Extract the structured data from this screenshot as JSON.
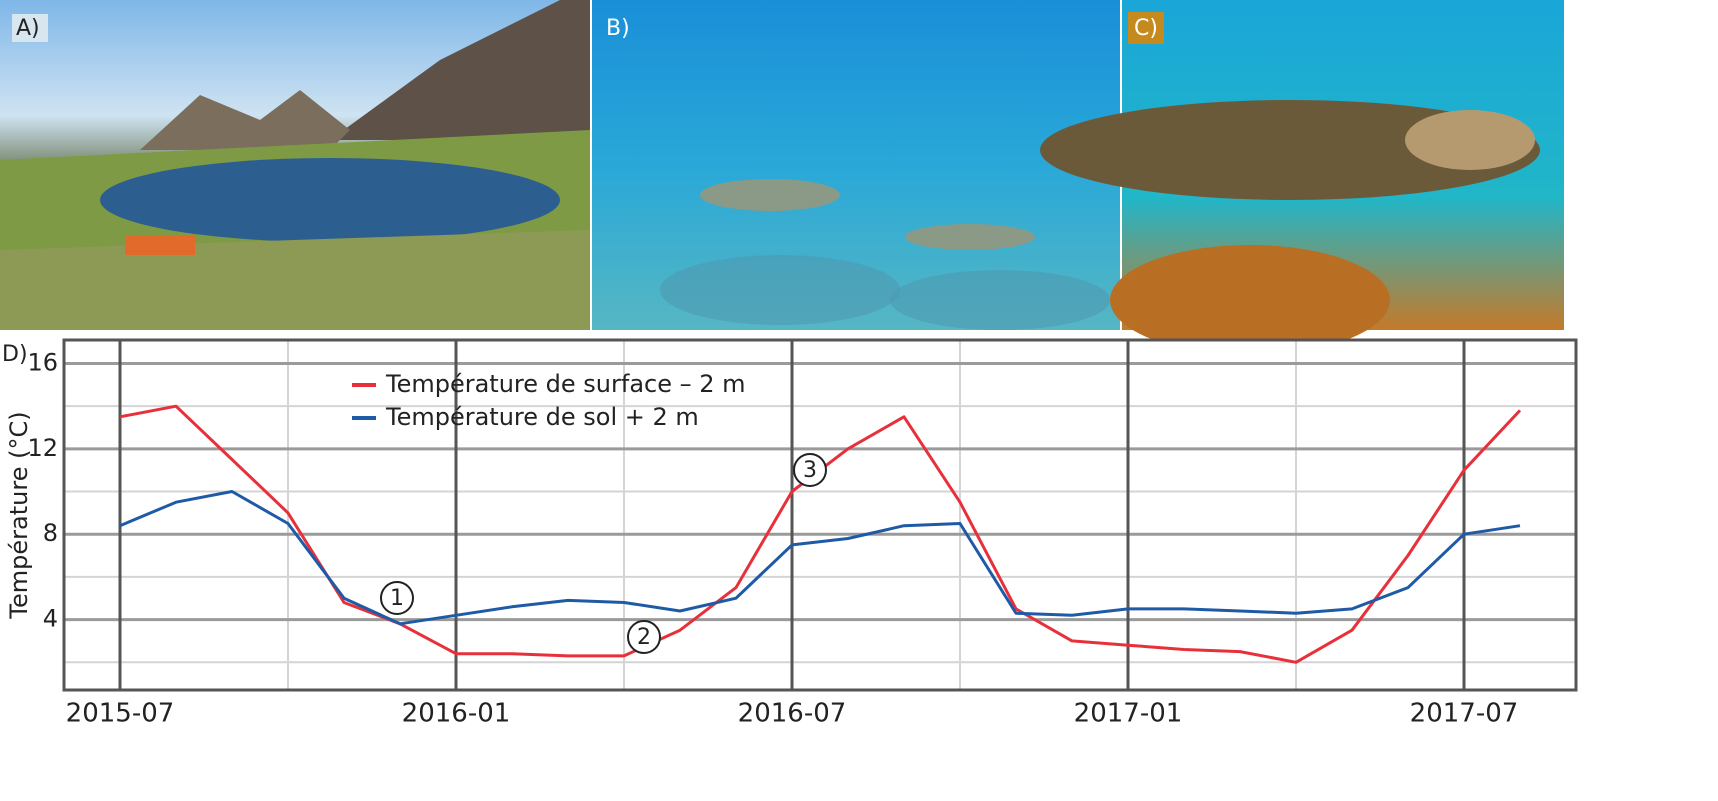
{
  "panels": [
    {
      "label": "A)"
    },
    {
      "label": "B)"
    },
    {
      "label": "C)"
    }
  ],
  "chart_data": {
    "type": "line",
    "panel_label": "D)",
    "ylabel": "Température (°C)",
    "x": [
      "2015-07",
      "2015-08",
      "2015-09",
      "2015-10",
      "2015-11",
      "2015-12",
      "2016-01",
      "2016-02",
      "2016-03",
      "2016-04",
      "2016-05",
      "2016-06",
      "2016-07",
      "2016-08",
      "2016-09",
      "2016-10",
      "2016-11",
      "2016-12",
      "2017-01",
      "2017-02",
      "2017-03",
      "2017-04",
      "2017-05",
      "2017-06",
      "2017-07",
      "2017-08"
    ],
    "series": [
      {
        "name": "Température de surface – 2 m",
        "color": "#e8303a",
        "values": [
          13.5,
          14,
          11.5,
          9,
          4.8,
          3.8,
          2.4,
          2.4,
          2.3,
          2.3,
          3.5,
          5.5,
          10,
          12,
          13.5,
          9.5,
          4.5,
          3,
          2.8,
          2.6,
          2.5,
          2,
          3.5,
          7,
          11,
          13.8
        ]
      },
      {
        "name": "Température de sol + 2 m",
        "color": "#1f5aa6",
        "values": [
          8.4,
          9.5,
          10,
          8.5,
          5,
          3.8,
          4.2,
          4.6,
          4.9,
          4.8,
          4.4,
          5,
          7.5,
          7.8,
          8.4,
          8.5,
          4.3,
          4.2,
          4.5,
          4.5,
          4.4,
          4.3,
          4.5,
          5.5,
          8,
          8.4
        ]
      }
    ],
    "xlim": [
      "2015-06",
      "2017-09"
    ],
    "xticks": [
      "2015-07",
      "2016-01",
      "2016-07",
      "2017-01",
      "2017-07"
    ],
    "x_minor_gridlines": [
      "2015-10",
      "2016-04",
      "2016-10",
      "2017-04"
    ],
    "ylim": [
      0.7,
      17.1
    ],
    "yticks": [
      4,
      8,
      12,
      16
    ],
    "y_minor_gridlines": [
      2,
      6,
      10,
      14
    ],
    "grid": true,
    "annotations": [
      "1",
      "2",
      "3"
    ]
  }
}
